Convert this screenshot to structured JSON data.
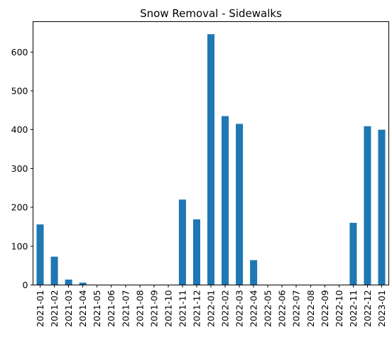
{
  "chart_data": {
    "type": "bar",
    "title": "Snow Removal - Sidewalks",
    "xlabel": "",
    "ylabel": "",
    "categories": [
      "2021-01",
      "2021-02",
      "2021-03",
      "2021-04",
      "2021-05",
      "2021-06",
      "2021-07",
      "2021-08",
      "2021-09",
      "2021-10",
      "2021-11",
      "2021-12",
      "2022-01",
      "2022-02",
      "2022-03",
      "2022-04",
      "2022-05",
      "2022-06",
      "2022-07",
      "2022-08",
      "2022-09",
      "2022-10",
      "2022-11",
      "2022-12",
      "2023-01"
    ],
    "values": [
      156,
      73,
      14,
      6,
      0,
      0,
      0,
      0,
      0,
      0,
      220,
      169,
      646,
      435,
      415,
      64,
      0,
      0,
      0,
      0,
      0,
      0,
      160,
      409,
      400
    ],
    "yticks": [
      0,
      100,
      200,
      300,
      400,
      500,
      600
    ],
    "ylim": [
      0,
      678.3
    ],
    "bar_color": "#1f77b4",
    "grid": false,
    "legend": false
  }
}
